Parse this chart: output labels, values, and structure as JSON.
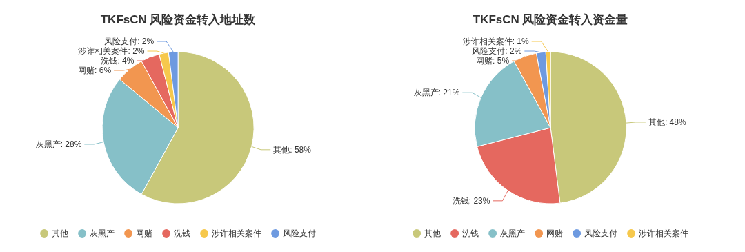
{
  "chart_data": [
    {
      "type": "pie",
      "title": "TKFsCN 风险资金转入地址数",
      "categories": [
        "其他",
        "灰黑产",
        "网赌",
        "洗钱",
        "涉诈相关案件",
        "风险支付"
      ],
      "values": [
        58,
        28,
        6,
        4,
        2,
        2
      ],
      "colors": [
        "#c8c87a",
        "#86c0c8",
        "#f29650",
        "#e5685f",
        "#f6c84c",
        "#6e9ae0"
      ],
      "value_labels": [
        "其他: 58%",
        "灰黑产: 28%",
        "网赌: 6%",
        "洗钱: 4%",
        "涉诈相关案件: 2%",
        "风险支付: 2%"
      ],
      "legend": "bottom"
    },
    {
      "type": "pie",
      "title": "TKFsCN 风险资金转入资金量",
      "categories": [
        "其他",
        "洗钱",
        "灰黑产",
        "网赌",
        "风险支付",
        "涉诈相关案件"
      ],
      "values": [
        48,
        23,
        21,
        5,
        2,
        1
      ],
      "colors": [
        "#c8c87a",
        "#e5685f",
        "#86c0c8",
        "#f29650",
        "#6e9ae0",
        "#f6c84c"
      ],
      "value_labels": [
        "其他: 48%",
        "洗钱: 23%",
        "灰黑产: 21%",
        "网赌: 5%",
        "风险支付: 2%",
        "涉诈相关案件: 1%"
      ],
      "legend": "bottom"
    }
  ]
}
